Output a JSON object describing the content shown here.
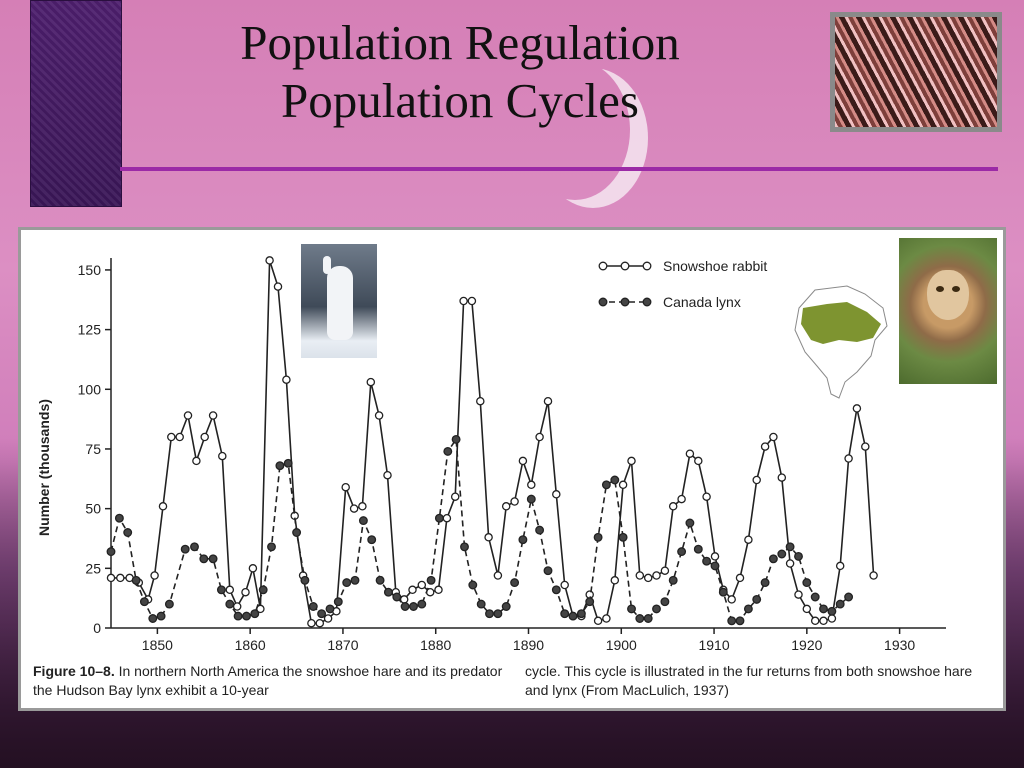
{
  "slide": {
    "title_line1": "Population Regulation",
    "title_line2": "Population Cycles"
  },
  "caption": {
    "figure_label": "Figure 10–8.",
    "text_part1": "In northern North America the snowshoe hare and its predator the Hudson Bay lynx exhibit a 10-year",
    "text_part2": "cycle. This cycle is illustrated in the fur returns from both snowshoe hare and lynx (From MacLulich, 1937)"
  },
  "chart_data": {
    "type": "line",
    "ylabel": "Number (thousands)",
    "ylim": [
      0,
      155
    ],
    "xlim": [
      1845,
      1935
    ],
    "yticks": [
      0,
      25,
      50,
      75,
      100,
      125,
      150
    ],
    "xticks": [
      1850,
      1860,
      1870,
      1880,
      1890,
      1900,
      1910,
      1920,
      1930
    ],
    "legend_position": "top-right",
    "series": [
      {
        "name": "Snowshoe rabbit",
        "style": "solid",
        "marker": "open-circle",
        "color": "#222222",
        "points": [
          [
            1845,
            21
          ],
          [
            1846,
            21
          ],
          [
            1847,
            21
          ],
          [
            1848,
            19
          ],
          [
            1849,
            12
          ],
          [
            1849.7,
            22
          ],
          [
            1850.6,
            51
          ],
          [
            1851.5,
            80
          ],
          [
            1852.4,
            80
          ],
          [
            1853.3,
            89
          ],
          [
            1854.2,
            70
          ],
          [
            1855.1,
            80
          ],
          [
            1856,
            89
          ],
          [
            1857,
            72
          ],
          [
            1857.8,
            16
          ],
          [
            1858.6,
            9
          ],
          [
            1859.5,
            15
          ],
          [
            1860.3,
            25
          ],
          [
            1861.1,
            8
          ],
          [
            1862.1,
            154
          ],
          [
            1863,
            143
          ],
          [
            1863.9,
            104
          ],
          [
            1864.8,
            47
          ],
          [
            1865.7,
            22
          ],
          [
            1866.6,
            2
          ],
          [
            1867.5,
            2
          ],
          [
            1868.4,
            4
          ],
          [
            1869.3,
            7
          ],
          [
            1870.3,
            59
          ],
          [
            1871.2,
            50
          ],
          [
            1872.1,
            51
          ],
          [
            1873,
            103
          ],
          [
            1873.9,
            89
          ],
          [
            1874.8,
            64
          ],
          [
            1875.7,
            15
          ],
          [
            1876.6,
            12
          ],
          [
            1877.5,
            16
          ],
          [
            1878.5,
            18
          ],
          [
            1879.4,
            15
          ],
          [
            1880.3,
            16
          ],
          [
            1881.2,
            46
          ],
          [
            1882.1,
            55
          ],
          [
            1883,
            137
          ],
          [
            1883.9,
            137
          ],
          [
            1884.8,
            95
          ],
          [
            1885.7,
            38
          ],
          [
            1886.7,
            22
          ],
          [
            1887.6,
            51
          ],
          [
            1888.5,
            53
          ],
          [
            1889.4,
            70
          ],
          [
            1890.3,
            60
          ],
          [
            1891.2,
            80
          ],
          [
            1892.1,
            95
          ],
          [
            1893,
            56
          ],
          [
            1893.9,
            18
          ],
          [
            1894.8,
            5
          ],
          [
            1895.7,
            5
          ],
          [
            1896.6,
            14
          ],
          [
            1897.5,
            3
          ],
          [
            1898.4,
            4
          ],
          [
            1899.3,
            20
          ],
          [
            1900.2,
            60
          ],
          [
            1901.1,
            70
          ],
          [
            1902,
            22
          ],
          [
            1902.9,
            21
          ],
          [
            1903.8,
            22
          ],
          [
            1904.7,
            24
          ],
          [
            1905.6,
            51
          ],
          [
            1906.5,
            54
          ],
          [
            1907.4,
            73
          ],
          [
            1908.3,
            70
          ],
          [
            1909.2,
            55
          ],
          [
            1910.1,
            30
          ],
          [
            1911,
            16
          ],
          [
            1911.9,
            12
          ],
          [
            1912.8,
            21
          ],
          [
            1913.7,
            37
          ],
          [
            1914.6,
            62
          ],
          [
            1915.5,
            76
          ],
          [
            1916.4,
            80
          ],
          [
            1917.3,
            63
          ],
          [
            1918.2,
            27
          ],
          [
            1919.1,
            14
          ],
          [
            1920,
            8
          ],
          [
            1920.9,
            3
          ],
          [
            1921.8,
            3
          ],
          [
            1922.7,
            4
          ],
          [
            1923.6,
            26
          ],
          [
            1924.5,
            71
          ],
          [
            1925.4,
            92
          ],
          [
            1926.3,
            76
          ],
          [
            1927.2,
            22
          ]
        ]
      },
      {
        "name": "Canada lynx",
        "style": "dashed",
        "marker": "filled-circle",
        "color": "#222222",
        "points": [
          [
            1845,
            32
          ],
          [
            1845.9,
            46
          ],
          [
            1846.8,
            40
          ],
          [
            1847.7,
            20
          ],
          [
            1848.6,
            11
          ],
          [
            1849.5,
            4
          ],
          [
            1850.4,
            5
          ],
          [
            1851.3,
            10
          ],
          [
            1853,
            33
          ],
          [
            1854,
            34
          ],
          [
            1855,
            29
          ],
          [
            1856,
            29
          ],
          [
            1856.9,
            16
          ],
          [
            1857.8,
            10
          ],
          [
            1858.7,
            5
          ],
          [
            1859.6,
            5
          ],
          [
            1860.5,
            6
          ],
          [
            1861.4,
            16
          ],
          [
            1862.3,
            34
          ],
          [
            1863.2,
            68
          ],
          [
            1864.1,
            69
          ],
          [
            1865,
            40
          ],
          [
            1865.9,
            20
          ],
          [
            1866.8,
            9
          ],
          [
            1867.7,
            6
          ],
          [
            1868.6,
            8
          ],
          [
            1869.5,
            11
          ],
          [
            1870.4,
            19
          ],
          [
            1871.3,
            20
          ],
          [
            1872.2,
            45
          ],
          [
            1873.1,
            37
          ],
          [
            1874,
            20
          ],
          [
            1874.9,
            15
          ],
          [
            1875.8,
            13
          ],
          [
            1876.7,
            9
          ],
          [
            1877.6,
            9
          ],
          [
            1878.5,
            10
          ],
          [
            1879.5,
            20
          ],
          [
            1880.4,
            46
          ],
          [
            1881.3,
            74
          ],
          [
            1882.2,
            79
          ],
          [
            1883.1,
            34
          ],
          [
            1884,
            18
          ],
          [
            1884.9,
            10
          ],
          [
            1885.8,
            6
          ],
          [
            1886.7,
            6
          ],
          [
            1887.6,
            9
          ],
          [
            1888.5,
            19
          ],
          [
            1889.4,
            37
          ],
          [
            1890.3,
            54
          ],
          [
            1891.2,
            41
          ],
          [
            1892.1,
            24
          ],
          [
            1893,
            16
          ],
          [
            1893.9,
            6
          ],
          [
            1894.8,
            5
          ],
          [
            1895.7,
            6
          ],
          [
            1896.6,
            11
          ],
          [
            1897.5,
            38
          ],
          [
            1898.4,
            60
          ],
          [
            1899.3,
            62
          ],
          [
            1900.2,
            38
          ],
          [
            1901.1,
            8
          ],
          [
            1902,
            4
          ],
          [
            1902.9,
            4
          ],
          [
            1903.8,
            8
          ],
          [
            1904.7,
            11
          ],
          [
            1905.6,
            20
          ],
          [
            1906.5,
            32
          ],
          [
            1907.4,
            44
          ],
          [
            1908.3,
            33
          ],
          [
            1909.2,
            28
          ],
          [
            1910.1,
            26
          ],
          [
            1911,
            15
          ],
          [
            1911.9,
            3
          ],
          [
            1912.8,
            3
          ],
          [
            1913.7,
            8
          ],
          [
            1914.6,
            12
          ],
          [
            1915.5,
            19
          ],
          [
            1916.4,
            29
          ],
          [
            1917.3,
            31
          ],
          [
            1918.2,
            34
          ],
          [
            1919.1,
            30
          ],
          [
            1920,
            19
          ],
          [
            1920.9,
            13
          ],
          [
            1921.8,
            8
          ],
          [
            1922.7,
            7
          ],
          [
            1923.6,
            10
          ],
          [
            1924.5,
            13
          ]
        ]
      }
    ]
  }
}
